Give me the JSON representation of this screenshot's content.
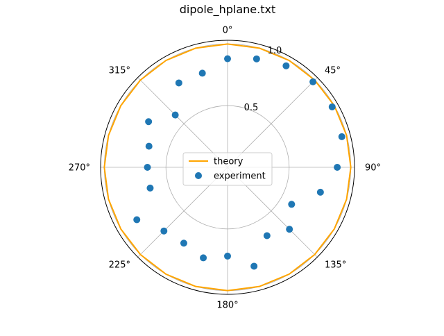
{
  "chart_data": {
    "type": "scatter",
    "projection": "polar",
    "title": "dipole_hplane.txt",
    "theta_zero_location": "top",
    "theta_direction": "clockwise",
    "angle_tick_labels": [
      "0°",
      "45°",
      "90°",
      "135°",
      "180°",
      "225°",
      "270°",
      "315°"
    ],
    "radial_ticks": [
      0.5,
      1.0
    ],
    "radial_tick_labels": [
      "0.5",
      "1.0"
    ],
    "rlim": [
      0,
      1.03
    ],
    "grid": true,
    "legend_placement": "center",
    "series": [
      {
        "name": "theory",
        "kind": "line",
        "color": "#ffa500",
        "theta_deg": [
          0,
          15,
          30,
          45,
          60,
          75,
          90,
          105,
          120,
          135,
          150,
          165,
          180,
          195,
          210,
          225,
          240,
          255,
          270,
          285,
          300,
          315,
          330,
          345,
          360
        ],
        "r": [
          1,
          1,
          1,
          1,
          1,
          1,
          1,
          1,
          1,
          1,
          1,
          1,
          1,
          1,
          1,
          1,
          1,
          1,
          1,
          1,
          1,
          1,
          1,
          1,
          1
        ]
      },
      {
        "name": "experiment",
        "kind": "scatter",
        "color": "#1f77b4",
        "theta_deg": [
          0,
          15,
          30,
          45,
          60,
          75,
          90,
          105,
          120,
          135,
          150,
          165,
          180,
          195,
          210,
          225,
          240,
          255,
          270,
          285,
          300,
          315,
          330,
          345
        ],
        "r": [
          0.88,
          0.91,
          0.95,
          0.98,
          0.98,
          0.96,
          0.89,
          0.78,
          0.6,
          0.71,
          0.64,
          0.83,
          0.72,
          0.76,
          0.71,
          0.73,
          0.85,
          0.65,
          0.65,
          0.66,
          0.74,
          0.6,
          0.79,
          0.79
        ]
      }
    ]
  }
}
